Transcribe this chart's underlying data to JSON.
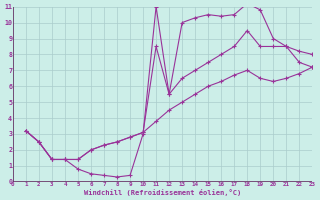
{
  "bg_color": "#cceee8",
  "plot_bg": "#cceee8",
  "grid_color": "#aacccc",
  "line_color": "#993399",
  "axis_bar_color": "#663366",
  "xlabel": "Windchill (Refroidissement éolien,°C)",
  "xlim": [
    0,
    23
  ],
  "ylim": [
    0,
    11
  ],
  "xticks": [
    0,
    1,
    2,
    3,
    4,
    5,
    6,
    7,
    8,
    9,
    10,
    11,
    12,
    13,
    14,
    15,
    16,
    17,
    18,
    19,
    20,
    21,
    22,
    23
  ],
  "yticks": [
    0,
    1,
    2,
    3,
    4,
    5,
    6,
    7,
    8,
    9,
    10,
    11
  ],
  "line1_x": [
    1,
    2,
    3,
    4,
    5,
    6,
    7,
    8,
    9,
    10,
    11,
    12,
    13,
    14,
    15,
    16,
    17,
    18,
    19,
    20,
    21,
    22,
    23
  ],
  "line1_y": [
    3.2,
    2.5,
    1.4,
    1.4,
    0.8,
    0.5,
    0.4,
    0.3,
    0.4,
    3.0,
    11.0,
    5.5,
    10.0,
    10.3,
    10.5,
    10.4,
    10.5,
    11.2,
    10.8,
    9.0,
    8.5,
    7.5,
    7.2
  ],
  "line2_x": [
    1,
    2,
    3,
    4,
    5,
    6,
    7,
    8,
    9,
    10,
    11,
    12,
    13,
    14,
    15,
    16,
    17,
    18,
    19,
    20,
    21,
    22,
    23
  ],
  "line2_y": [
    3.2,
    2.5,
    1.4,
    1.4,
    1.4,
    2.0,
    2.3,
    2.5,
    2.8,
    3.1,
    8.5,
    5.5,
    6.5,
    7.0,
    7.5,
    8.0,
    8.5,
    9.5,
    8.5,
    8.5,
    8.5,
    8.2,
    8.0
  ],
  "line3_x": [
    1,
    2,
    3,
    4,
    5,
    6,
    7,
    8,
    9,
    10,
    11,
    12,
    13,
    14,
    15,
    16,
    17,
    18,
    19,
    20,
    21,
    22,
    23
  ],
  "line3_y": [
    3.2,
    2.5,
    1.4,
    1.4,
    1.4,
    2.0,
    2.3,
    2.5,
    2.8,
    3.1,
    3.8,
    4.5,
    5.0,
    5.5,
    6.0,
    6.3,
    6.7,
    7.0,
    6.5,
    6.3,
    6.5,
    6.8,
    7.2
  ]
}
